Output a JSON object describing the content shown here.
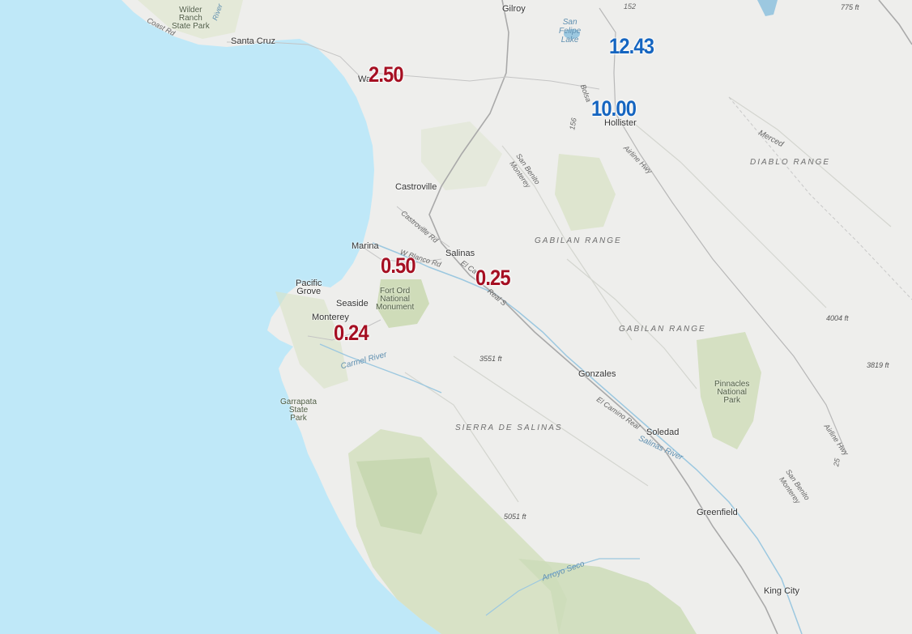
{
  "cities": [
    {
      "id": "santa-cruz",
      "name": "Santa Cruz"
    },
    {
      "id": "gilroy",
      "name": "Gilroy"
    },
    {
      "id": "watsonville",
      "name": "Wa"
    },
    {
      "id": "hollister",
      "name": "Hollister"
    },
    {
      "id": "castroville",
      "name": "Castroville"
    },
    {
      "id": "marina",
      "name": "Marina"
    },
    {
      "id": "salinas",
      "name": "Salinas"
    },
    {
      "id": "pacific-grove",
      "name": "Pacific\nGrove"
    },
    {
      "id": "seaside",
      "name": "Seaside"
    },
    {
      "id": "monterey",
      "name": "Monterey"
    },
    {
      "id": "gonzales",
      "name": "Gonzales"
    },
    {
      "id": "soledad",
      "name": "Soledad"
    },
    {
      "id": "greenfield",
      "name": "Greenfield"
    },
    {
      "id": "king-city",
      "name": "King City"
    }
  ],
  "parks": [
    {
      "id": "wilder-ranch",
      "name": "Wilder\nRanch\nState Park"
    },
    {
      "id": "fort-ord",
      "name": "Fort Ord\nNational\nMonument"
    },
    {
      "id": "garrapata",
      "name": "Garrapata\nState\nPark"
    },
    {
      "id": "pinnacles",
      "name": "Pinnacles\nNational\nPark"
    }
  ],
  "ranges": {
    "diablo": "DIABLO RANGE",
    "gabilan1": "GABILAN RANGE",
    "gabilan2": "GABILAN RANGE",
    "sierra": "SIERRA DE SALINAS"
  },
  "roads": {
    "coast_rd": "Coast Rd",
    "castroville_rd": "Castroville Rd",
    "w_blanco": "W Blanco Rd",
    "el_camino_1": "El Ca",
    "el_camino_2": "Real S",
    "el_camino_3": "El Camino Real",
    "airline_1": "Airline Hwy",
    "airline_2": "Airline Hwy",
    "r152": "152",
    "r156": "156",
    "r25": "25",
    "bolsa": "Bolsa",
    "san_benito_monterey_1": "San Benito\nMonterey",
    "san_benito_monterey_2": "San Benito\nMonterey",
    "merced": "Merced",
    "river_top": "River"
  },
  "elevations": {
    "e775": "775 ft",
    "e4004": "4004 ft",
    "e3819": "3819 ft",
    "e3551": "3551 ft",
    "e5051": "5051 ft"
  },
  "water": {
    "san_felipe": "San\nFelipe\nLake",
    "carmel_river": "Carmel River",
    "salinas_river": "Salinas River",
    "arroyo_seco": "Arroyo Seco"
  },
  "values": [
    {
      "id": "watsonville",
      "text": "2.50",
      "color": "#a50f22"
    },
    {
      "id": "san-felipe",
      "text": "12.43",
      "color": "#1565c0"
    },
    {
      "id": "hollister",
      "text": "10.00",
      "color": "#1565c0"
    },
    {
      "id": "marina",
      "text": "0.50",
      "color": "#a50f22"
    },
    {
      "id": "salinas",
      "text": "0.25",
      "color": "#a50f22"
    },
    {
      "id": "monterey",
      "text": "0.24",
      "color": "#a50f22"
    }
  ]
}
